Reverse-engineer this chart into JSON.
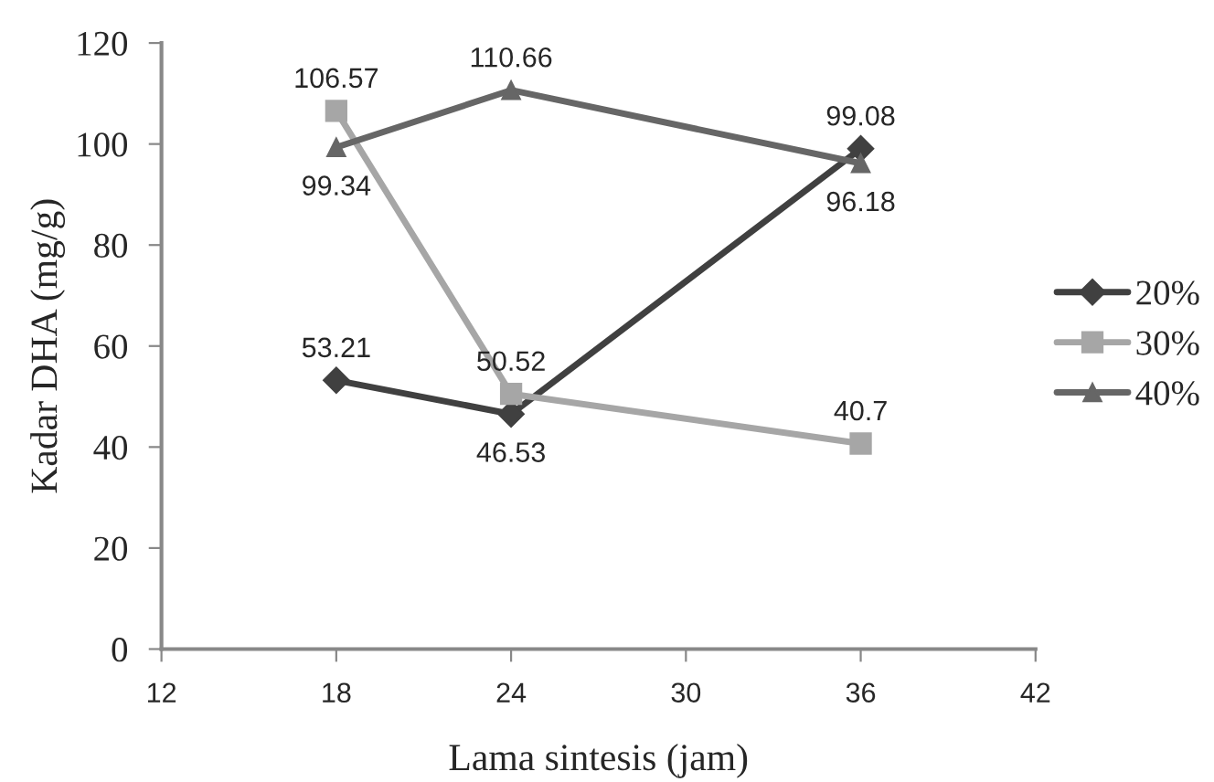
{
  "chart_data": {
    "type": "line",
    "xlabel": "Lama sintesis (jam)",
    "ylabel": "Kadar DHA (mg/g)",
    "x": [
      18,
      24,
      36
    ],
    "series": [
      {
        "name": "20%",
        "color": "#404040",
        "values": [
          53.21,
          46.53,
          99.08
        ],
        "marker": "diamond"
      },
      {
        "name": "30%",
        "color": "#a6a6a6",
        "values": [
          106.57,
          50.52,
          40.7
        ],
        "marker": "square"
      },
      {
        "name": "40%",
        "color": "#666666",
        "values": [
          99.34,
          110.66,
          96.18
        ],
        "marker": "triangle"
      }
    ],
    "xlim": [
      12,
      42
    ],
    "xticks": [
      12,
      18,
      24,
      30,
      36,
      42
    ],
    "ylim": [
      0,
      120
    ],
    "yticks": [
      0,
      20,
      40,
      60,
      80,
      100,
      120
    ],
    "data_labels": true,
    "legend": "right",
    "grid": false
  }
}
